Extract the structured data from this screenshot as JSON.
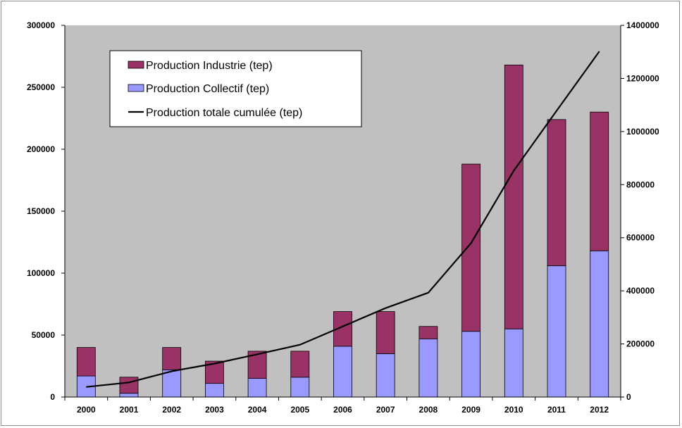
{
  "chart_data": {
    "type": "bar",
    "stacked": true,
    "categories": [
      "2000",
      "2001",
      "2002",
      "2003",
      "2004",
      "2005",
      "2006",
      "2007",
      "2008",
      "2009",
      "2010",
      "2011",
      "2012"
    ],
    "series": [
      {
        "name": "Production Collectif (tep)",
        "type": "bar",
        "axis": "left",
        "color": "#9999ff",
        "values": [
          17000,
          3000,
          22000,
          11000,
          15000,
          16000,
          41000,
          35000,
          47000,
          53000,
          55000,
          106000,
          118000
        ]
      },
      {
        "name": "Production Industrie (tep)",
        "type": "bar",
        "axis": "left",
        "color": "#993366",
        "values": [
          23000,
          13000,
          18000,
          18000,
          22000,
          21000,
          28000,
          34000,
          10000,
          135000,
          213000,
          118000,
          112000
        ]
      },
      {
        "name": "Production totale cumulée (tep)",
        "type": "line",
        "axis": "right",
        "color": "#000000",
        "values": [
          38000,
          55000,
          97000,
          126000,
          161000,
          197000,
          266000,
          335000,
          393000,
          580000,
          853000,
          1078000,
          1302000
        ]
      }
    ],
    "legend_order": [
      "Production Industrie (tep)",
      "Production Collectif (tep)",
      "Production totale cumulée (tep)"
    ],
    "y_left": {
      "min": 0,
      "max": 300000,
      "ticks": [
        "0",
        "50000",
        "100000",
        "150000",
        "200000",
        "250000",
        "300000"
      ]
    },
    "y_right": {
      "min": 0,
      "max": 1400000,
      "ticks": [
        "0",
        "200000",
        "400000",
        "600000",
        "800000",
        "1000000",
        "1200000",
        "1400000"
      ]
    },
    "plot_background": "#c0c0c0",
    "legend_position": "top-left",
    "grid": false
  }
}
